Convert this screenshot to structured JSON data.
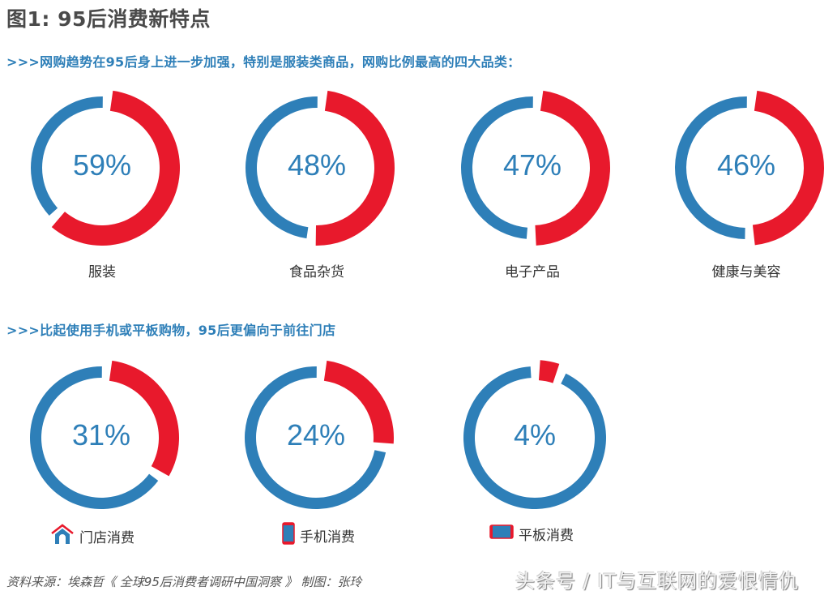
{
  "title": "图1: 95后消费新特点",
  "section1": {
    "heading": ">>>网购趋势在95后身上进一步加强，特别是服装类商品，网购比例最高的四大品类："
  },
  "section2": {
    "heading": ">>>比起使用手机或平板购物，95后更偏向于前往门店"
  },
  "colors": {
    "accent_red": "#e8192c",
    "accent_blue": "#2e7fb8",
    "title_gray": "#4a4a4a"
  },
  "top_donuts": [
    {
      "pct_text": "59%",
      "label": "服装"
    },
    {
      "pct_text": "48%",
      "label": "食品杂货"
    },
    {
      "pct_text": "47%",
      "label": "电子产品"
    },
    {
      "pct_text": "46%",
      "label": "健康与美容"
    }
  ],
  "bottom_donuts": [
    {
      "pct_text": "31%",
      "label": "门店消费",
      "icon": "store-icon"
    },
    {
      "pct_text": "24%",
      "label": "手机消费",
      "icon": "phone-icon"
    },
    {
      "pct_text": "4%",
      "label": "平板消费",
      "icon": "tablet-icon"
    }
  ],
  "footer": {
    "source": "资料来源：埃森哲《 全球95后消费者调研中国洞察 》    制图：张玲",
    "watermark": "头条号 / IT与互联网的爱恨情仇"
  },
  "chart_data": [
    {
      "type": "pie",
      "title": "网购比例最高的四大品类",
      "categories": [
        "服装",
        "食品杂货",
        "电子产品",
        "健康与美容"
      ],
      "values": [
        59,
        48,
        47,
        46
      ],
      "unit": "%",
      "style": "donut"
    },
    {
      "type": "pie",
      "title": "比起使用手机或平板购物，95后更偏向于前往门店",
      "categories": [
        "门店消费",
        "手机消费",
        "平板消费"
      ],
      "values": [
        31,
        24,
        4
      ],
      "unit": "%",
      "style": "donut"
    }
  ]
}
